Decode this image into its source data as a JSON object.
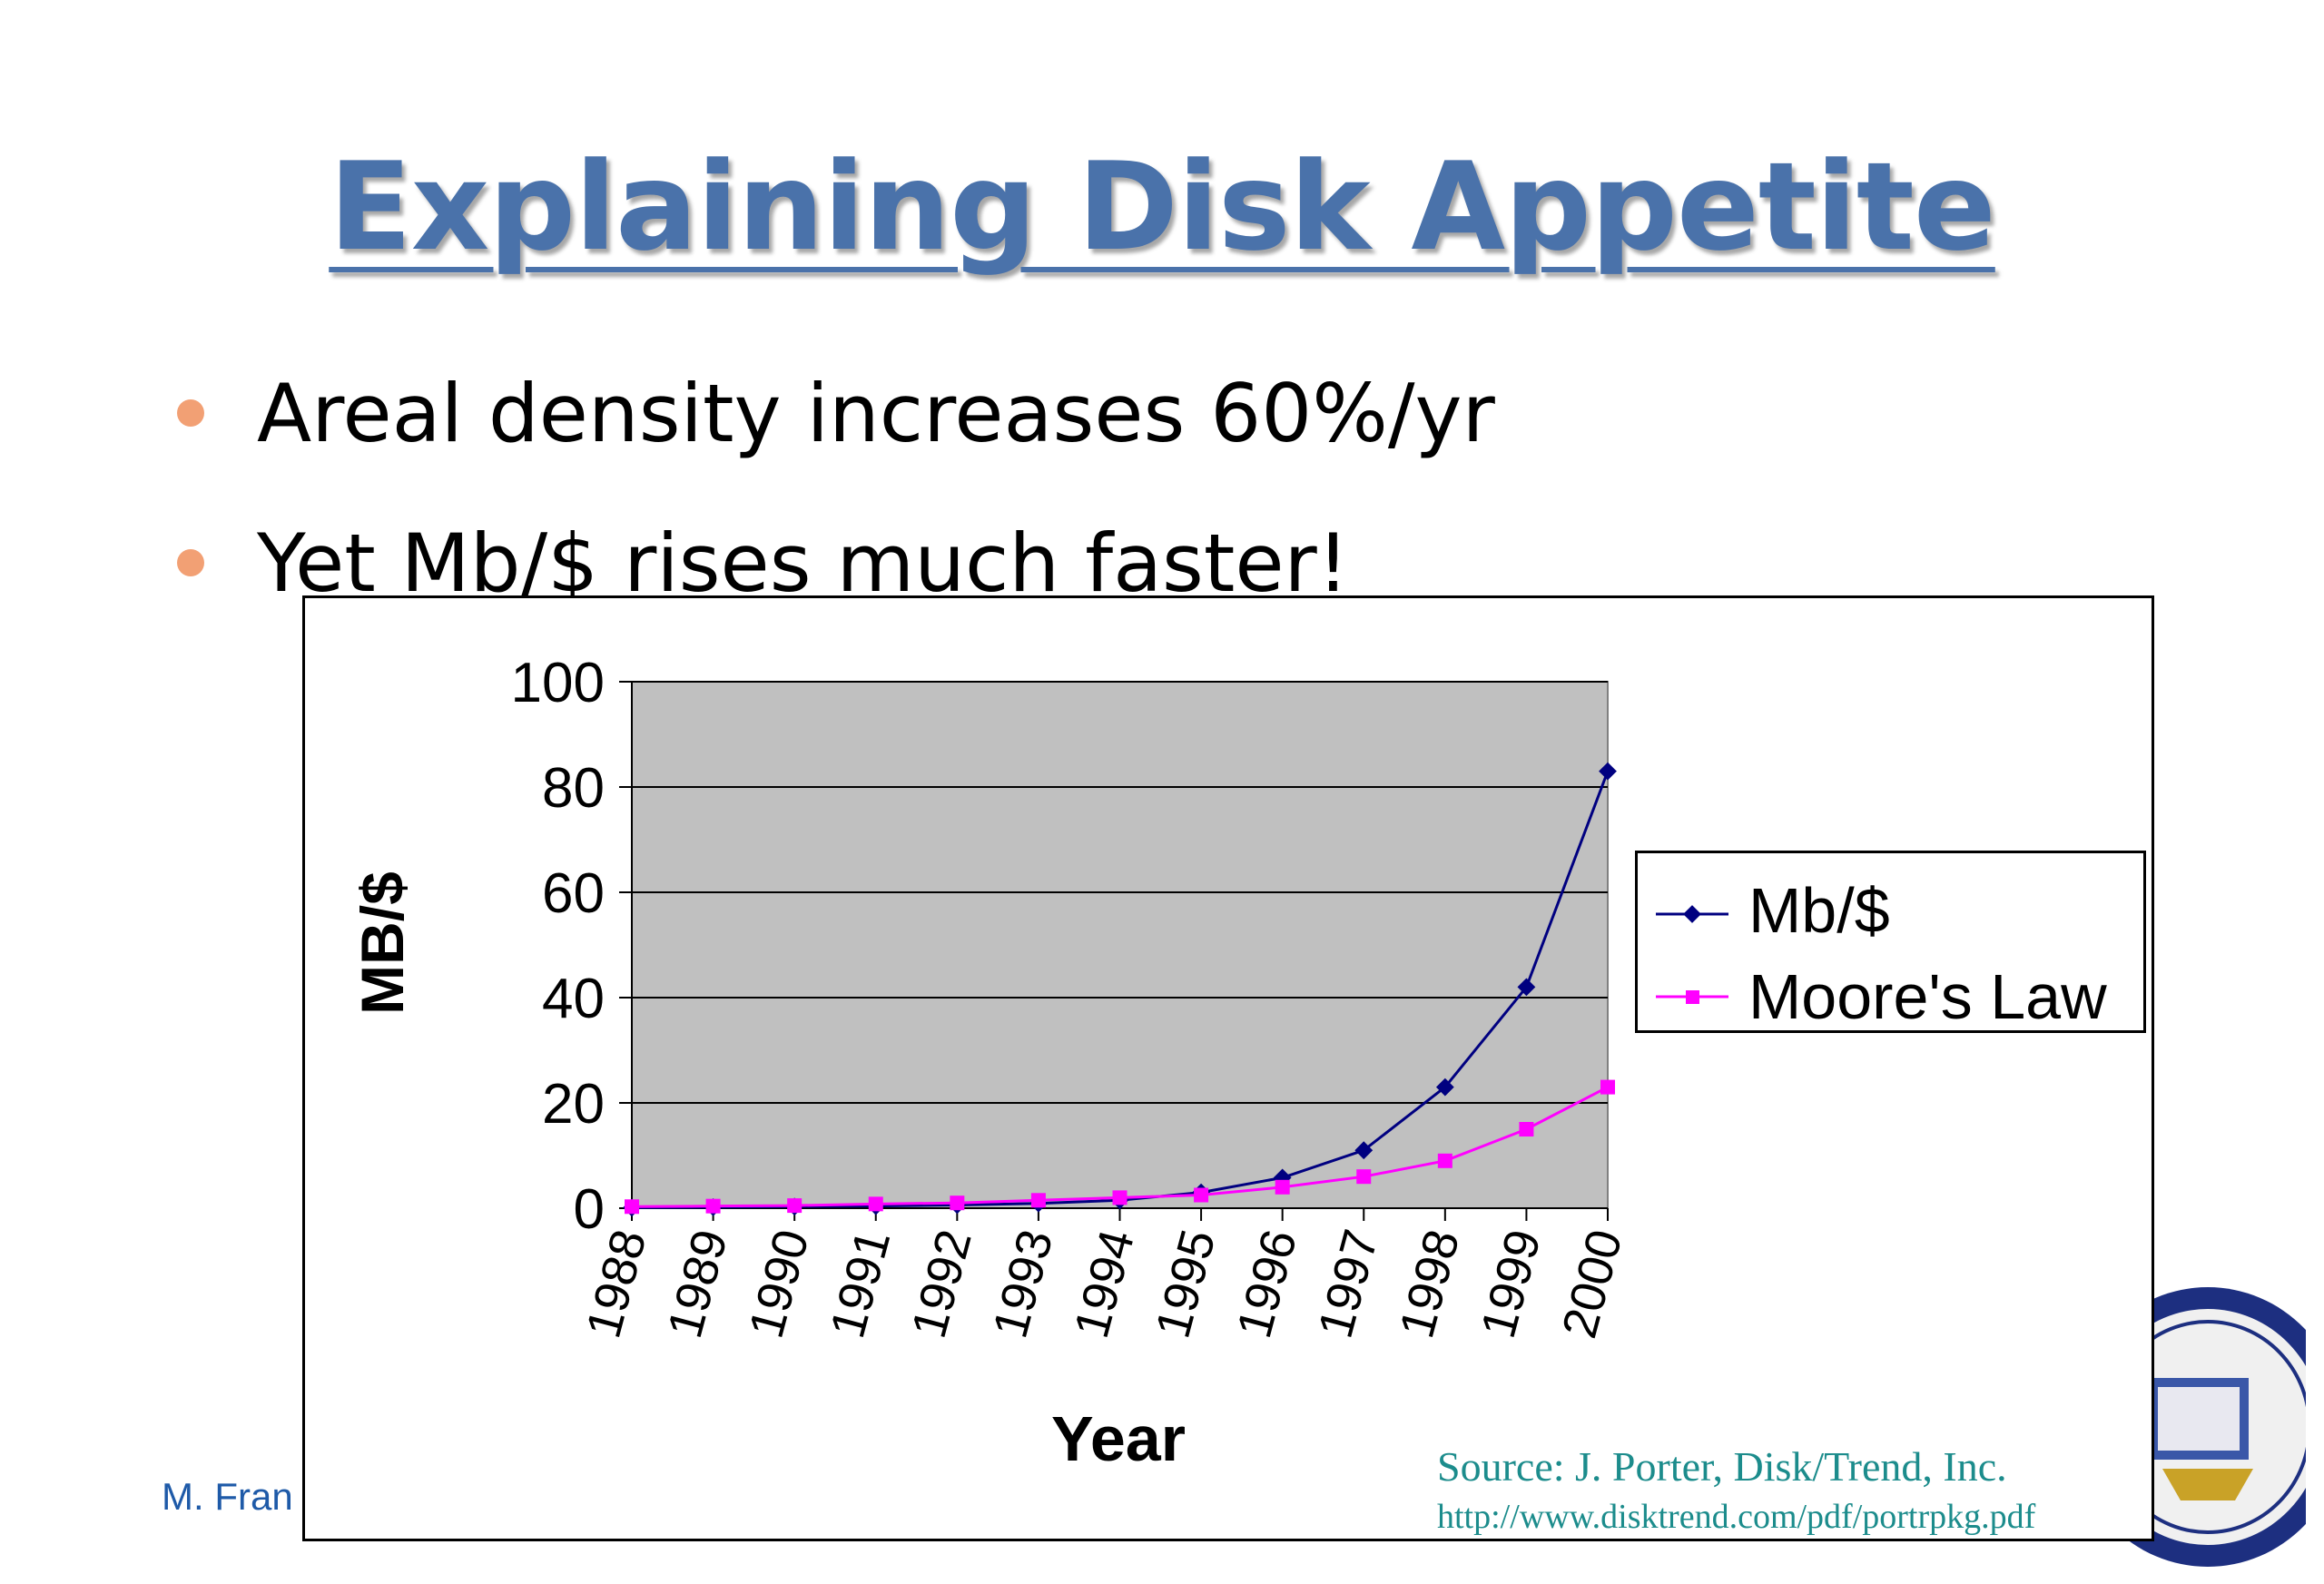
{
  "slide": {
    "title": "Explaining Disk Appetite",
    "bullets": [
      "Areal density increases 60%/yr",
      "Yet Mb/$ rises much faster!"
    ],
    "footer_author": "M. Fran",
    "source_line1": "Source: J. Porter, Disk/Trend, Inc.",
    "source_line2": "http://www.disktrend.com/pdf/portrpkg.pdf"
  },
  "colors": {
    "title": "#4a72aa",
    "bullet": "#f2a074",
    "plot_bg": "#c0c0c0",
    "series_mb": "#000080",
    "series_moore": "#ff00ff",
    "source_text": "#1c8c8c",
    "footer_text": "#1e5aa8"
  },
  "chart_data": {
    "type": "line",
    "xlabel": "Year",
    "ylabel": "MB/$",
    "ylim": [
      0,
      100
    ],
    "y_ticks": [
      0,
      20,
      40,
      60,
      80,
      100
    ],
    "grid": true,
    "legend_position": "right",
    "categories": [
      "1988",
      "1989",
      "1990",
      "1991",
      "1992",
      "1993",
      "1994",
      "1995",
      "1996",
      "1997",
      "1998",
      "1999",
      "2000"
    ],
    "series": [
      {
        "name": "Mb/$",
        "marker": "diamond",
        "values": [
          0.1,
          0.2,
          0.3,
          0.4,
          0.6,
          0.9,
          1.5,
          3.0,
          5.8,
          11,
          23,
          42,
          83
        ]
      },
      {
        "name": "Moore's Law",
        "marker": "square",
        "values": [
          0.3,
          0.4,
          0.5,
          0.8,
          1.0,
          1.5,
          2.0,
          2.5,
          4.0,
          6.0,
          9.0,
          15,
          23
        ]
      }
    ]
  }
}
